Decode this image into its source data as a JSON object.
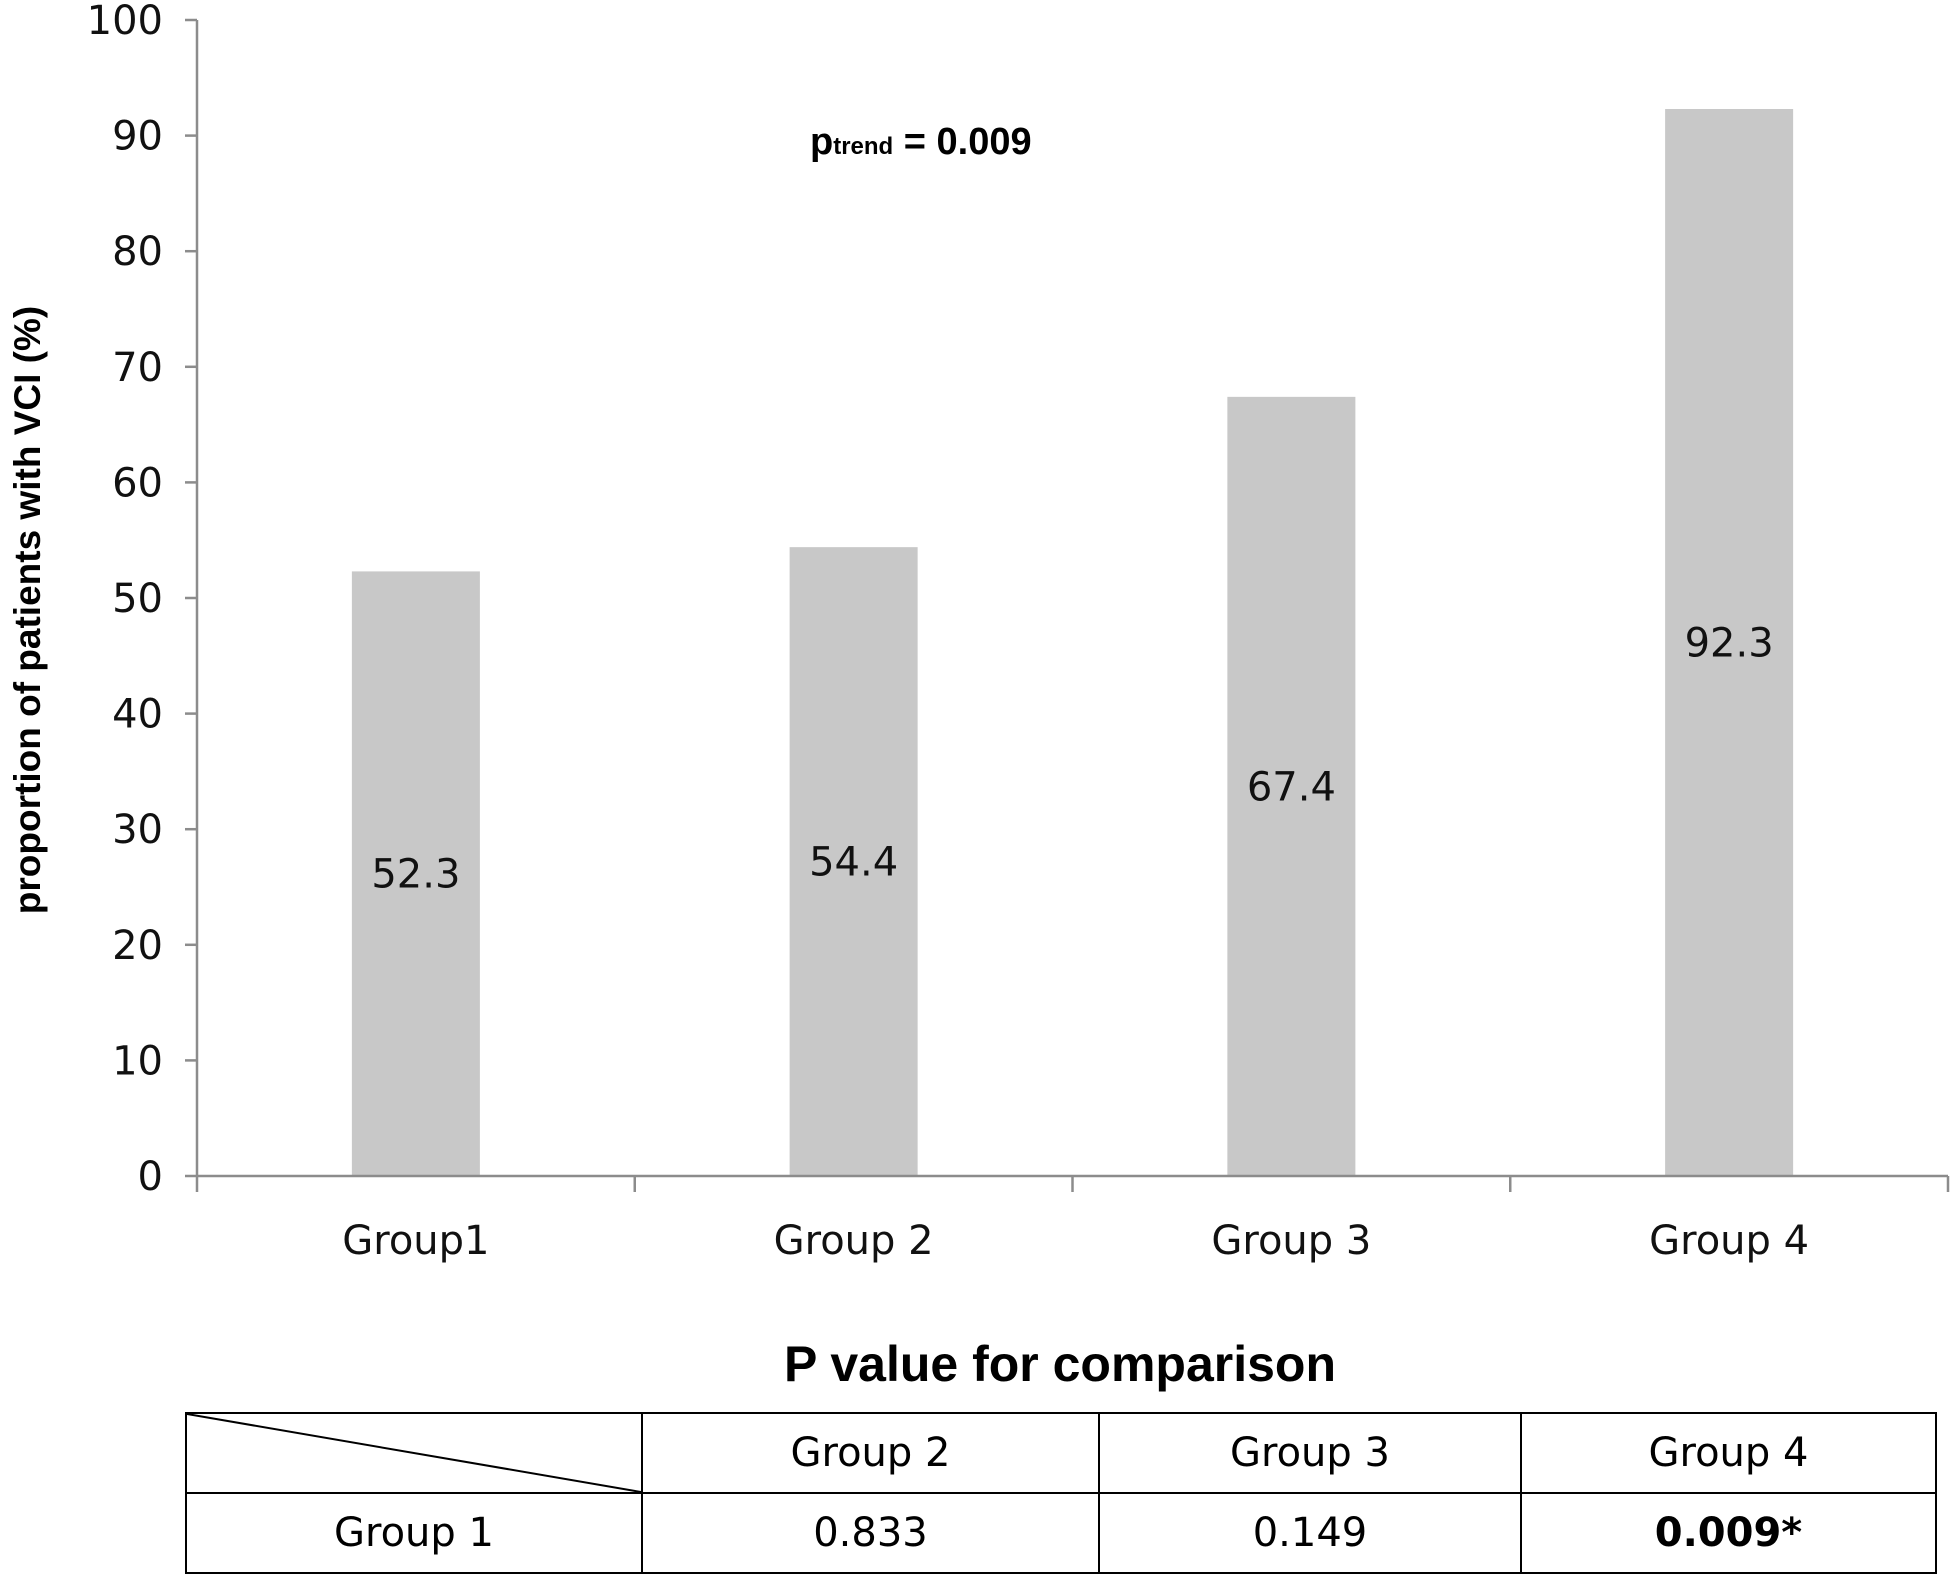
{
  "chart_data": {
    "type": "bar",
    "categories": [
      "Group1",
      "Group 2",
      "Group 3",
      "Group 4"
    ],
    "values": [
      52.3,
      54.4,
      67.4,
      92.3
    ],
    "data_labels": [
      "52.3",
      "54.4",
      "67.4",
      "92.3"
    ],
    "title": "",
    "xlabel": "",
    "ylabel": "proportion of  patients with VCI (%)",
    "ylim": [
      0,
      100
    ],
    "yticks": [
      0,
      10,
      20,
      30,
      40,
      50,
      60,
      70,
      80,
      90,
      100
    ],
    "grid": false,
    "bar_color": "#c8c8c8",
    "annotation": {
      "p": "p",
      "sub": "trend",
      "rest": " = 0.009"
    }
  },
  "table": {
    "title": "P value for comparison",
    "header": [
      "",
      "Group 2",
      "Group 3",
      "Group 4"
    ],
    "rows": [
      {
        "label": "Group 1",
        "values": [
          "0.833",
          "0.149",
          "0.009*"
        ],
        "bold": [
          false,
          false,
          true
        ]
      }
    ]
  }
}
